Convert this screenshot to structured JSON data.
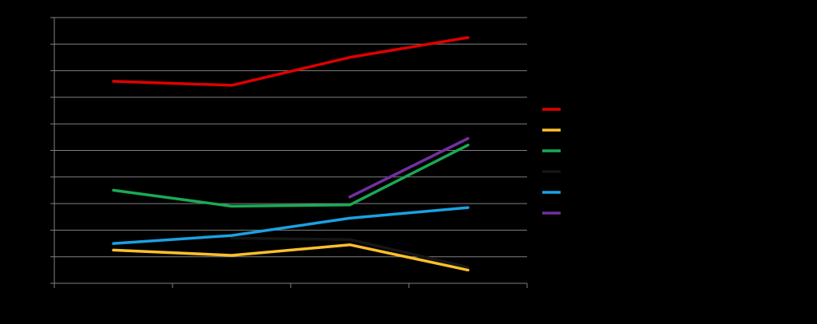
{
  "chart_data": {
    "type": "line",
    "x": [
      1,
      2,
      3,
      4
    ],
    "ylim": [
      0,
      10
    ],
    "y_tick_count": 11,
    "x_tick_count": 5,
    "grid": true,
    "legend_placement": "right",
    "background": "#000000",
    "grid_color": "#808080",
    "axis_color": "#808080",
    "series": [
      {
        "color": "#E00000",
        "values": [
          7.6,
          7.45,
          8.5,
          9.25
        ]
      },
      {
        "color": "#FDBF2D",
        "values": [
          1.25,
          1.05,
          1.45,
          0.5
        ]
      },
      {
        "color": "#1AAA55",
        "values": [
          3.5,
          2.9,
          2.95,
          5.2
        ]
      },
      {
        "color": "#151515",
        "values": [
          null,
          1.7,
          1.65,
          0.6
        ]
      },
      {
        "color": "#1BA1E2",
        "values": [
          1.5,
          1.8,
          2.45,
          2.85
        ]
      },
      {
        "color": "#7030A0",
        "values": [
          null,
          null,
          3.25,
          5.45
        ]
      }
    ]
  }
}
